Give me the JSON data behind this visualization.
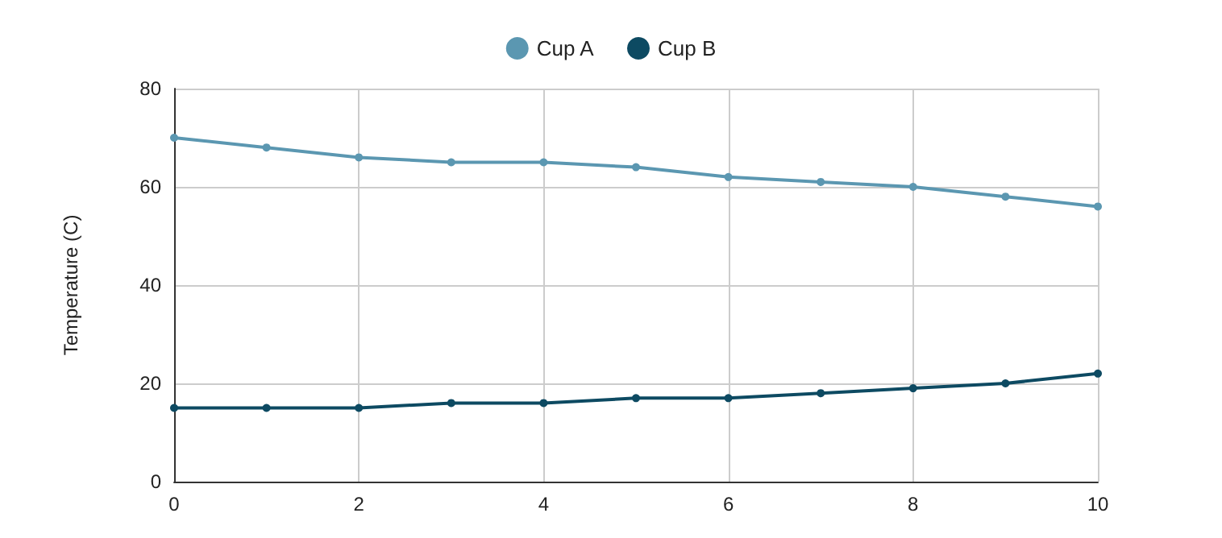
{
  "chart_data": {
    "type": "line",
    "ylabel": "Temperature (C)",
    "x": [
      0,
      1,
      2,
      3,
      4,
      5,
      6,
      7,
      8,
      9,
      10
    ],
    "series": [
      {
        "name": "Cup A",
        "color": "#5b97b1",
        "values": [
          70,
          68,
          66,
          65,
          65,
          64,
          62,
          61,
          60,
          58,
          56
        ]
      },
      {
        "name": "Cup B",
        "color": "#0d4a62",
        "values": [
          15,
          15,
          15,
          16,
          16,
          17,
          17,
          18,
          19,
          20,
          22
        ]
      }
    ],
    "xlim": [
      0,
      10
    ],
    "xticks": [
      0,
      2,
      4,
      6,
      8,
      10
    ],
    "ylim": [
      0,
      80
    ],
    "yticks": [
      0,
      20,
      40,
      60,
      80
    ],
    "grid": true,
    "legend": "top",
    "marker": "circle",
    "line_style": "solid"
  }
}
